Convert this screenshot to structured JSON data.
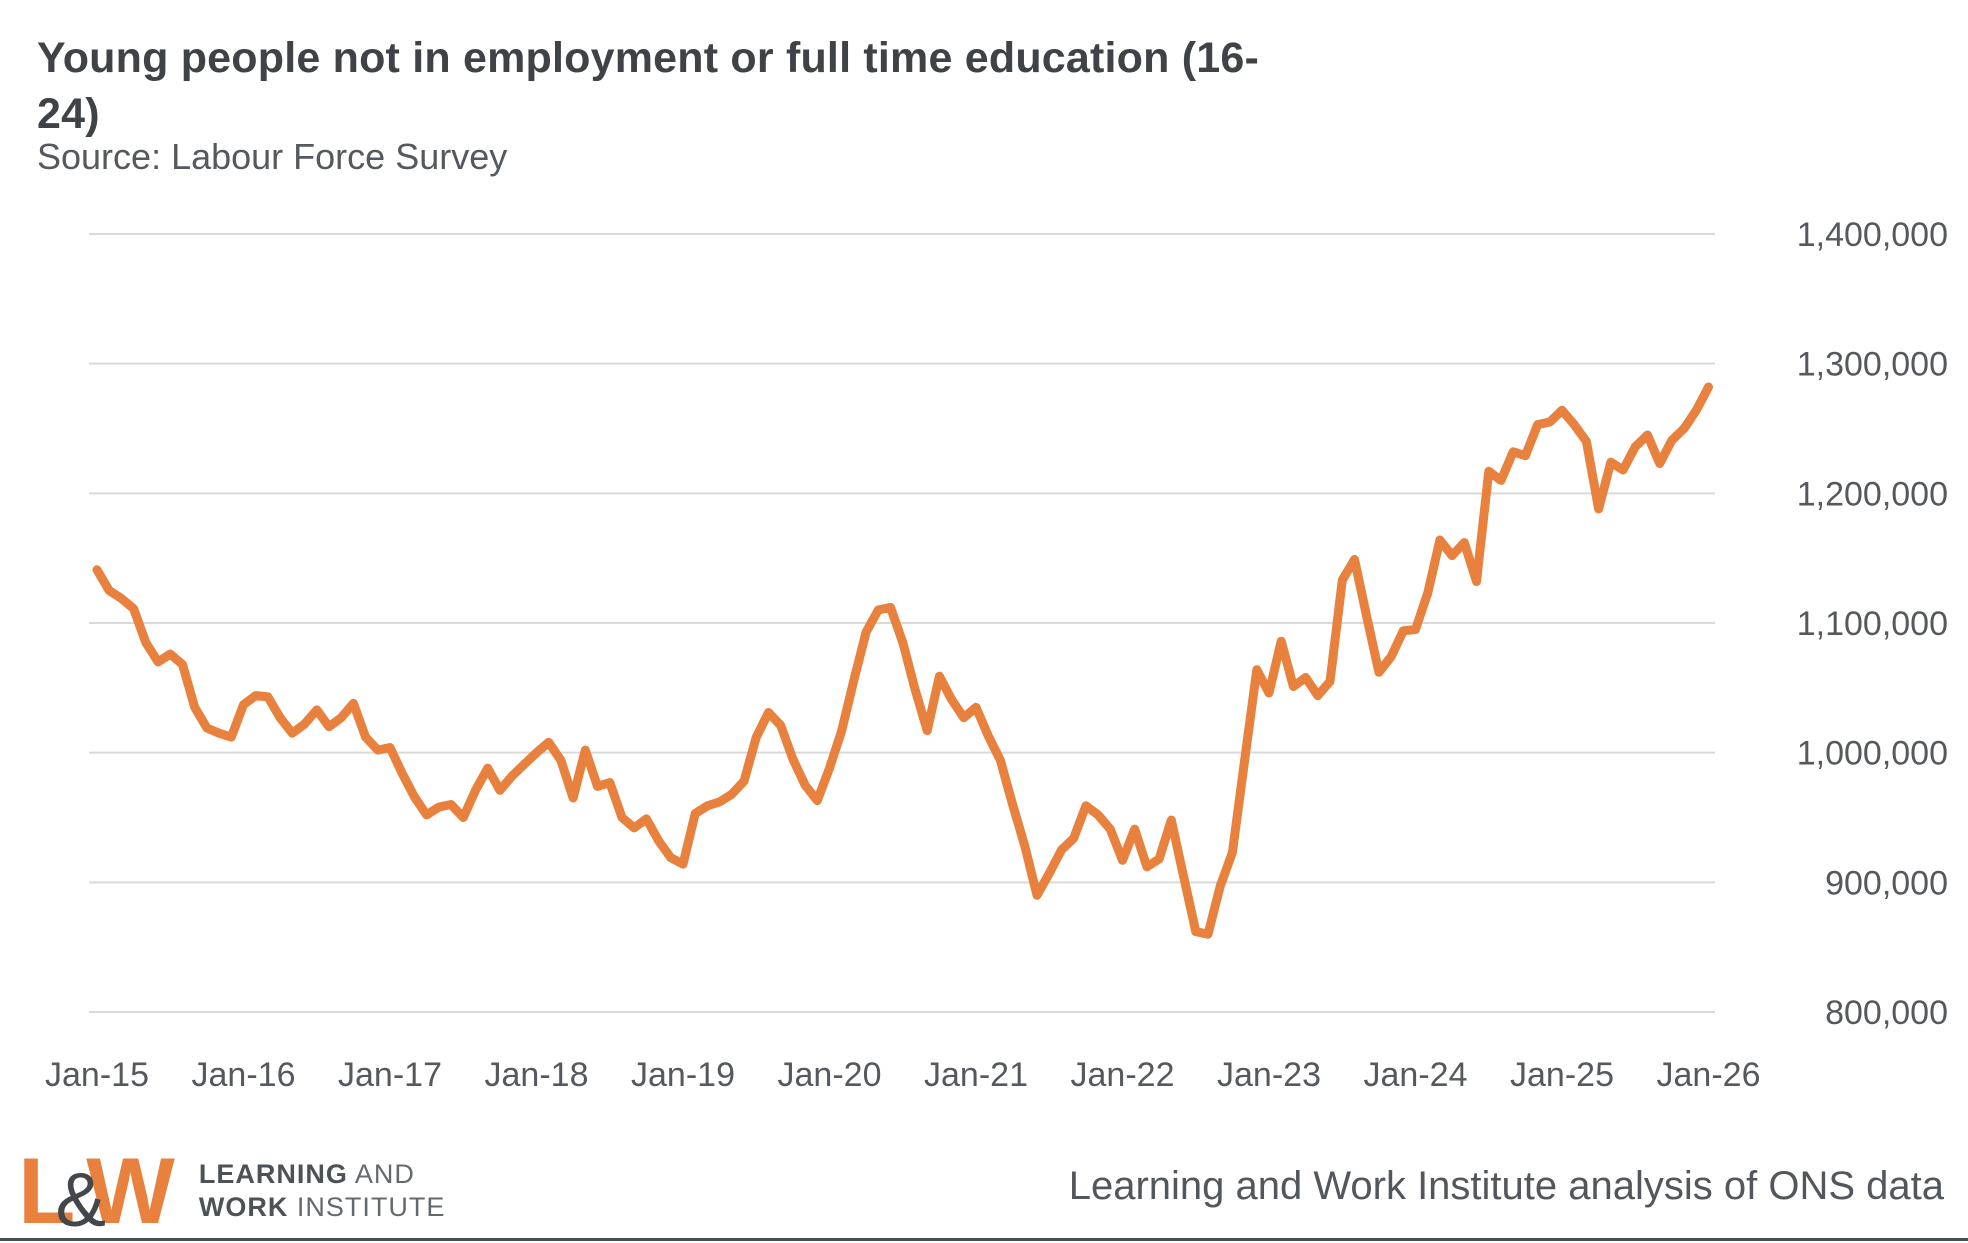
{
  "header": {
    "title_line1": "Young people not in employment or full time education (16-",
    "title_line2": "24)",
    "title_full": "Young people not in employment or full time education (16-24)",
    "source": "Source: Labour Force Survey"
  },
  "colors": {
    "line_orange": "#e8803e",
    "gridline_gray": "#d9d9d9",
    "axis_label_gray": "#55595d",
    "title_gray": "#3f4347"
  },
  "chart_data": {
    "type": "line",
    "title": "Young people not in employment or full time education (16-24)",
    "xlabel": "",
    "ylabel": "",
    "x_start": "Jan-15",
    "x_interval": "monthly",
    "x_tick_labels": [
      "Jan-15",
      "Jan-16",
      "Jan-17",
      "Jan-18",
      "Jan-19",
      "Jan-20",
      "Jan-21",
      "Jan-22",
      "Jan-23",
      "Jan-24",
      "Jan-25",
      "Jan-26"
    ],
    "y_ticks": [
      800000,
      900000,
      1000000,
      1100000,
      1200000,
      1300000,
      1400000
    ],
    "y_tick_labels": [
      "800,000",
      "900,000",
      "1,000,000",
      "1,100,000",
      "1,200,000",
      "1,300,000",
      "1,400,000"
    ],
    "ylim": [
      800000,
      1400000
    ],
    "grid": "horizontal",
    "legend": "none",
    "series": [
      {
        "name": "Young people not in employment or full time education (16-24)",
        "color": "#e8803e",
        "values": [
          1141000,
          1125000,
          1119000,
          1111000,
          1085000,
          1070000,
          1076000,
          1068000,
          1035000,
          1019000,
          1015000,
          1012000,
          1037000,
          1044000,
          1043000,
          1027000,
          1015000,
          1022000,
          1033000,
          1020000,
          1027000,
          1038000,
          1012000,
          1002000,
          1004000,
          984000,
          966000,
          952000,
          958000,
          960000,
          950000,
          971000,
          988000,
          971000,
          982000,
          991000,
          1000000,
          1008000,
          994000,
          965000,
          1002000,
          974000,
          977000,
          950000,
          942000,
          949000,
          932000,
          919000,
          914000,
          953000,
          959000,
          962000,
          968000,
          978000,
          1012000,
          1031000,
          1021000,
          995000,
          975000,
          963000,
          988000,
          1017000,
          1056000,
          1093000,
          1110000,
          1112000,
          1085000,
          1049000,
          1017000,
          1059000,
          1041000,
          1027000,
          1035000,
          1013000,
          994000,
          960000,
          928000,
          890000,
          907000,
          925000,
          934000,
          959000,
          952000,
          941000,
          917000,
          941000,
          912000,
          918000,
          948000,
          905000,
          862000,
          860000,
          897000,
          923000,
          994000,
          1064000,
          1046000,
          1086000,
          1051000,
          1058000,
          1044000,
          1055000,
          1133000,
          1149000,
          1105000,
          1062000,
          1074000,
          1094000,
          1095000,
          1123000,
          1164000,
          1152000,
          1162000,
          1132000,
          1217000,
          1210000,
          1232000,
          1229000,
          1253000,
          1255000,
          1264000,
          1253000,
          1240000,
          1188000,
          1224000,
          1218000,
          1236000,
          1245000,
          1223000,
          1241000,
          1250000,
          1264000,
          1282000
        ]
      }
    ]
  },
  "footer": {
    "logo": {
      "l": "L",
      "amp": "&",
      "w": "W",
      "line1_bold": "LEARNING",
      "line1_rest": "AND",
      "line2_bold": "WORK",
      "line2_rest": "INSTITUTE"
    },
    "attribution": "Learning and Work Institute analysis of ONS data"
  }
}
